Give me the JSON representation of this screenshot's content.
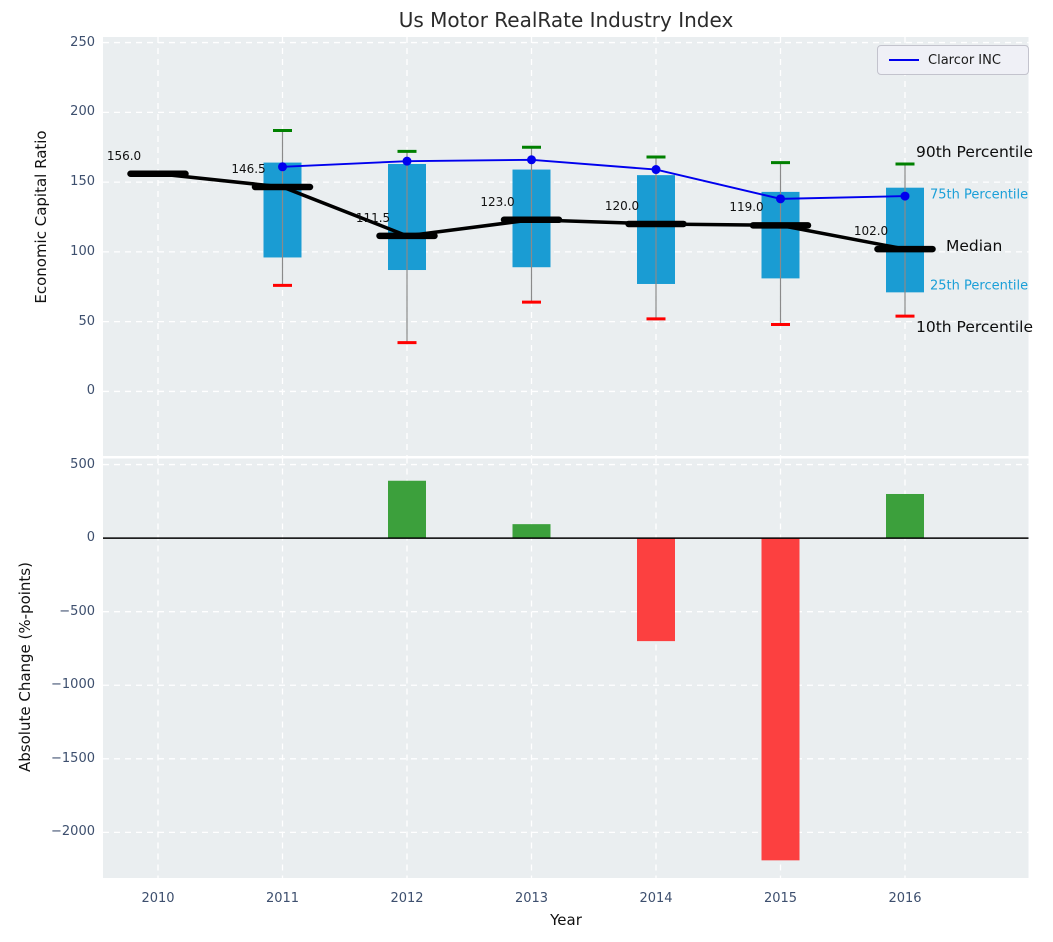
{
  "title": "Us Motor RealRate Industry Index",
  "legend": {
    "label": "Clarcor INC"
  },
  "xlabel": "Year",
  "side_labels": {
    "p90": "90th Percentile",
    "p75": "75th Percentile",
    "median": "Median",
    "p25": "25th Percentile",
    "p10": "10th Percentile"
  },
  "colors": {
    "plot_bg": "#eaeef0",
    "grid": "#ffffff",
    "box_fill": "#1a9cd3",
    "whisker": "#8a8a8a",
    "cap_high": "#008000",
    "cap_low": "#ff0000",
    "median_line": "#000000",
    "clarcor_line": "#0000ee",
    "bar_positive": "#3ca03c",
    "bar_negative": "#fc4040",
    "tick_color": "#3d4f6e",
    "percentile_label_color": "#1a9fd8",
    "zero_line": "#000000"
  },
  "chart_data": [
    {
      "type": "box",
      "title": "Us Motor RealRate Industry Index",
      "ylabel": "Economic Capital Ratio",
      "ylim": [
        -47,
        254
      ],
      "yticks": [
        0,
        50,
        100,
        150,
        200,
        250
      ],
      "ytick_labels": [
        "0",
        "50",
        "100",
        "150",
        "200",
        "250"
      ],
      "categories": [
        "2010",
        "2011",
        "2012",
        "2013",
        "2014",
        "2015",
        "2016"
      ],
      "grid": true,
      "legend_position": "upper right",
      "boxes": [
        {
          "year": "2010",
          "median": 156.0
        },
        {
          "year": "2011",
          "p10": 76,
          "p25": 96,
          "median": 146.5,
          "p75": 164,
          "p90": 187
        },
        {
          "year": "2012",
          "p10": 35,
          "p25": 87,
          "median": 111.5,
          "p75": 163,
          "p90": 172
        },
        {
          "year": "2013",
          "p10": 64,
          "p25": 89,
          "median": 123.0,
          "p75": 159,
          "p90": 175
        },
        {
          "year": "2014",
          "p10": 52,
          "p25": 77,
          "median": 120.0,
          "p75": 155,
          "p90": 168
        },
        {
          "year": "2015",
          "p10": 48,
          "p25": 81,
          "median": 119.0,
          "p75": 143,
          "p90": 164
        },
        {
          "year": "2016",
          "p10": 54,
          "p25": 71,
          "median": 102.0,
          "p75": 146,
          "p90": 163
        }
      ],
      "median_labels": [
        "156.0",
        "146.5",
        "111.5",
        "123.0",
        "120.0",
        "119.0",
        "102.0"
      ],
      "series": [
        {
          "name": "Clarcor INC",
          "x": [
            "2011",
            "2012",
            "2013",
            "2014",
            "2015",
            "2016"
          ],
          "values": [
            161,
            165,
            166,
            159,
            138,
            140
          ]
        }
      ]
    },
    {
      "type": "bar",
      "ylabel": "Absolute Change (%-points)",
      "xlabel": "Year",
      "ylim": [
        -2310,
        548
      ],
      "yticks": [
        500,
        0,
        -500,
        -1000,
        -1500,
        -2000
      ],
      "ytick_labels": [
        "500",
        "0",
        "−500",
        "−1000",
        "−1500",
        "−2000"
      ],
      "categories": [
        "2010",
        "2011",
        "2012",
        "2013",
        "2014",
        "2015",
        "2016"
      ],
      "values": [
        null,
        null,
        390,
        95,
        -700,
        -2190,
        300
      ],
      "grid": true
    }
  ]
}
